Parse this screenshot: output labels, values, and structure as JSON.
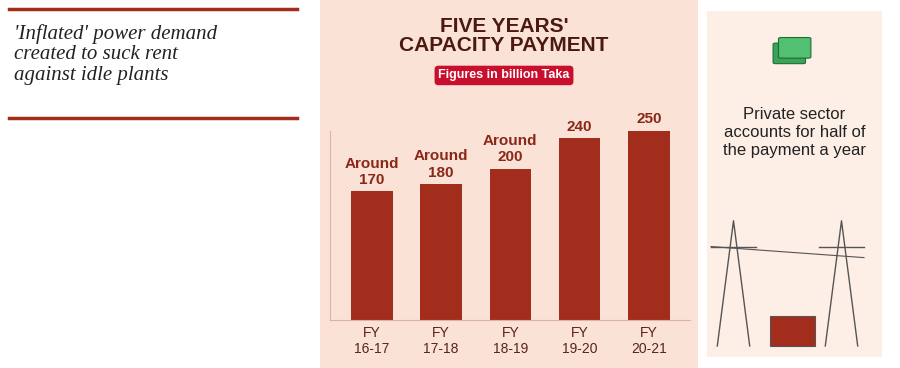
{
  "header": {
    "headline": "'Inflated' power demand\ncreated to suck rent\nagainst idle plants"
  },
  "chart_data": {
    "type": "bar",
    "title": "FIVE YEARS'\nCAPACITY PAYMENT",
    "subtitle": "Figures in billion Taka",
    "categories": [
      "FY\n16-17",
      "FY\n17-18",
      "FY\n18-19",
      "FY\n19-20",
      "FY\n20-21"
    ],
    "values": [
      170,
      180,
      200,
      240,
      250
    ],
    "value_labels": [
      "Around\n170",
      "Around\n180",
      "Around\n200",
      "240",
      "250"
    ],
    "color": "#a32d1c",
    "ylim": [
      0,
      250
    ],
    "yticks": [],
    "data_labels": true,
    "tick_labels": "x",
    "grid": false
  },
  "side_note": {
    "text": "Private sector\naccounts for half of\nthe payment a year"
  }
}
